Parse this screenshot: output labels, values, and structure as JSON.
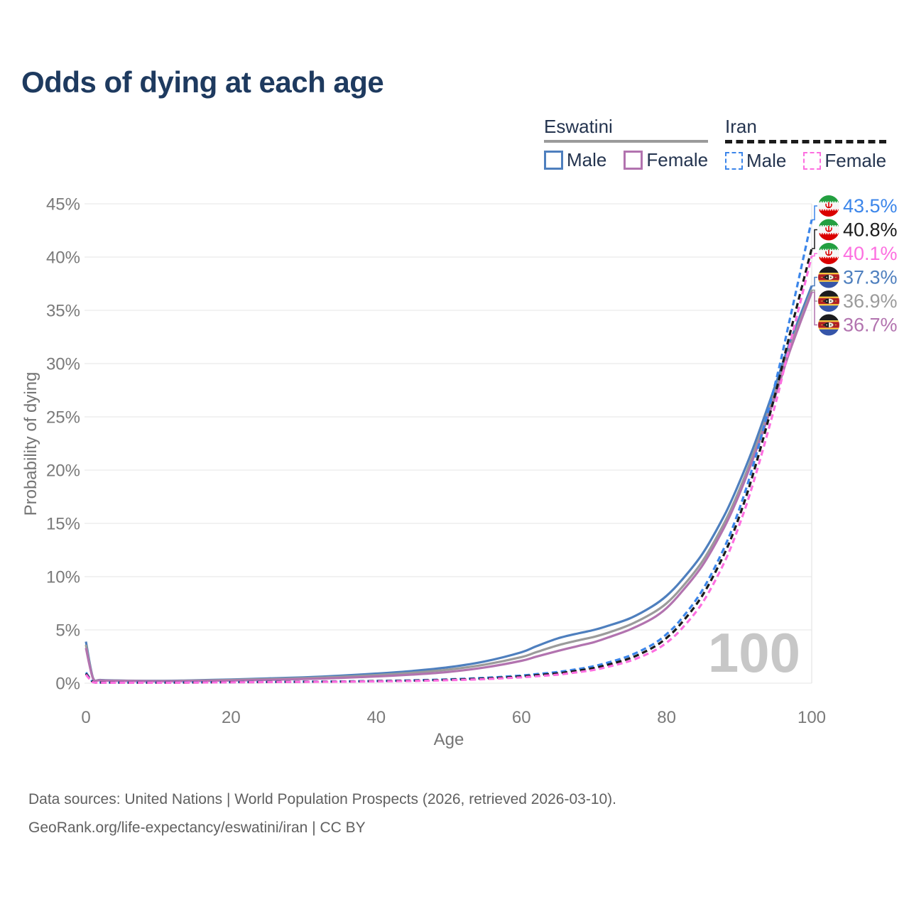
{
  "title": "Odds of dying at each age",
  "watermark": "100",
  "legend": {
    "groups": [
      {
        "label": "Eswatini",
        "line_style": "solid",
        "color": "#9b9b9b",
        "items": [
          {
            "label": "Male",
            "color": "#4e7fbe"
          },
          {
            "label": "Female",
            "color": "#b273af"
          }
        ]
      },
      {
        "label": "Iran",
        "line_style": "dashed",
        "color": "#1b1b1b",
        "items": [
          {
            "label": "Male",
            "color": "#3c86ea"
          },
          {
            "label": "Female",
            "color": "#fd6fe0"
          }
        ]
      }
    ]
  },
  "footer": {
    "line1": "Data sources: United Nations | World Population Prospects (2026, retrieved 2026-03-10).",
    "line2": "GeoRank.org/life-expectancy/eswatini/iran | CC BY"
  },
  "chart_data": {
    "type": "line",
    "title": "Odds of dying at each age",
    "xlabel": "Age",
    "ylabel": "Probability of dying",
    "xlim": [
      0,
      100
    ],
    "ylim": [
      0,
      45
    ],
    "y_unit": "%",
    "grid": "horizontal",
    "legend_position": "top-right",
    "x_ticks": [
      0,
      20,
      40,
      60,
      80,
      100
    ],
    "y_ticks": [
      "0%",
      "5%",
      "10%",
      "15%",
      "20%",
      "25%",
      "30%",
      "35%",
      "40%",
      "45%"
    ],
    "x": [
      0,
      1,
      2,
      5,
      10,
      15,
      20,
      25,
      30,
      35,
      40,
      45,
      50,
      55,
      60,
      62,
      65,
      68,
      70,
      72,
      75,
      78,
      80,
      82,
      85,
      88,
      90,
      92,
      95,
      97,
      100
    ],
    "series": [
      {
        "name": "Eswatini Male",
        "country": "Eswatini",
        "sex": "Male",
        "style": "solid",
        "color": "#4e7fbe",
        "flag": "eswatini",
        "end_label": "37.3%",
        "values": [
          3.9,
          0.45,
          0.3,
          0.25,
          0.22,
          0.27,
          0.35,
          0.45,
          0.55,
          0.7,
          0.9,
          1.15,
          1.5,
          2.05,
          2.9,
          3.45,
          4.2,
          4.7,
          5.0,
          5.4,
          6.1,
          7.2,
          8.2,
          9.6,
          12.2,
          15.8,
          18.8,
          22.2,
          28.0,
          32.0,
          37.3
        ]
      },
      {
        "name": "Eswatini (both sexes)",
        "country": "Eswatini",
        "sex": "Both",
        "style": "solid",
        "color": "#9b9b9b",
        "flag": "eswatini",
        "end_label": "36.9%",
        "values": [
          3.6,
          0.42,
          0.28,
          0.23,
          0.2,
          0.24,
          0.3,
          0.38,
          0.47,
          0.59,
          0.76,
          0.98,
          1.28,
          1.75,
          2.45,
          2.9,
          3.55,
          4.05,
          4.35,
          4.75,
          5.5,
          6.55,
          7.5,
          8.9,
          11.5,
          15.1,
          18.1,
          21.6,
          27.4,
          31.5,
          36.9
        ]
      },
      {
        "name": "Eswatini Female",
        "country": "Eswatini",
        "sex": "Female",
        "style": "solid",
        "color": "#b273af",
        "flag": "eswatini",
        "end_label": "36.7%",
        "values": [
          3.3,
          0.4,
          0.26,
          0.21,
          0.18,
          0.2,
          0.25,
          0.31,
          0.39,
          0.49,
          0.63,
          0.81,
          1.06,
          1.48,
          2.1,
          2.48,
          3.02,
          3.52,
          3.85,
          4.3,
          5.05,
          6.05,
          7.05,
          8.5,
          11.1,
          14.7,
          17.7,
          21.2,
          27.0,
          31.2,
          36.7
        ]
      },
      {
        "name": "Iran Male",
        "country": "Iran",
        "sex": "Male",
        "style": "dashed",
        "color": "#3c86ea",
        "flag": "iran",
        "end_label": "43.5%",
        "values": [
          1.0,
          0.1,
          0.07,
          0.06,
          0.06,
          0.08,
          0.1,
          0.12,
          0.14,
          0.17,
          0.21,
          0.27,
          0.36,
          0.5,
          0.72,
          0.85,
          1.05,
          1.35,
          1.6,
          1.95,
          2.6,
          3.6,
          4.6,
          6.0,
          8.8,
          12.8,
          16.3,
          20.6,
          28.2,
          34.2,
          43.5
        ]
      },
      {
        "name": "Iran (both sexes)",
        "country": "Iran",
        "sex": "Both",
        "style": "dashed",
        "color": "#1b1b1b",
        "flag": "iran",
        "end_label": "40.8%",
        "values": [
          0.9,
          0.09,
          0.06,
          0.05,
          0.05,
          0.07,
          0.09,
          0.11,
          0.13,
          0.15,
          0.19,
          0.24,
          0.32,
          0.44,
          0.63,
          0.75,
          0.92,
          1.2,
          1.42,
          1.75,
          2.35,
          3.3,
          4.25,
          5.6,
          8.3,
          12.2,
          15.6,
          19.8,
          27.2,
          32.8,
          40.8
        ]
      },
      {
        "name": "Iran Female",
        "country": "Iran",
        "sex": "Female",
        "style": "dashed",
        "color": "#fd6fe0",
        "flag": "iran",
        "end_label": "40.1%",
        "values": [
          0.8,
          0.08,
          0.05,
          0.04,
          0.04,
          0.06,
          0.08,
          0.1,
          0.12,
          0.14,
          0.17,
          0.21,
          0.28,
          0.38,
          0.55,
          0.65,
          0.8,
          1.05,
          1.25,
          1.55,
          2.1,
          2.95,
          3.8,
          5.05,
          7.6,
          11.4,
          14.8,
          18.9,
          26.2,
          31.8,
          40.1
        ]
      }
    ]
  }
}
